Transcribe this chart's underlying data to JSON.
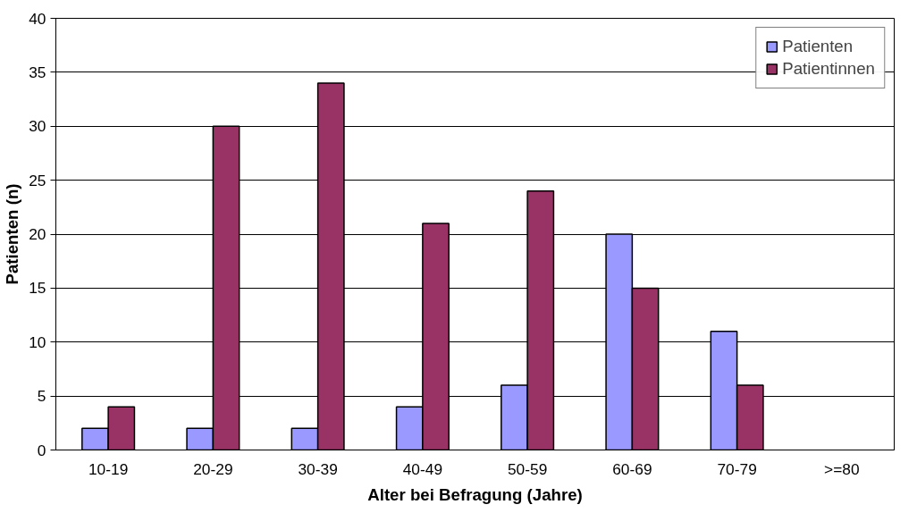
{
  "chart_data": {
    "type": "bar",
    "xlabel": "Alter bei Befragung (Jahre)",
    "ylabel": "Patienten (n)",
    "categories": [
      "10-19",
      "20-29",
      "30-39",
      "40-49",
      "50-59",
      "60-69",
      "70-79",
      ">=80"
    ],
    "series": [
      {
        "name": "Patienten",
        "color": "#9999ff",
        "values": [
          2,
          2,
          2,
          4,
          6,
          20,
          11,
          null
        ]
      },
      {
        "name": "Patientinnen",
        "color": "#993366",
        "values": [
          4,
          30,
          34,
          21,
          24,
          15,
          6,
          null
        ]
      }
    ],
    "ylim": [
      0,
      40
    ],
    "yticks": [
      0,
      5,
      10,
      15,
      20,
      25,
      30,
      35,
      40
    ],
    "grid": "y",
    "legend": "top right"
  }
}
